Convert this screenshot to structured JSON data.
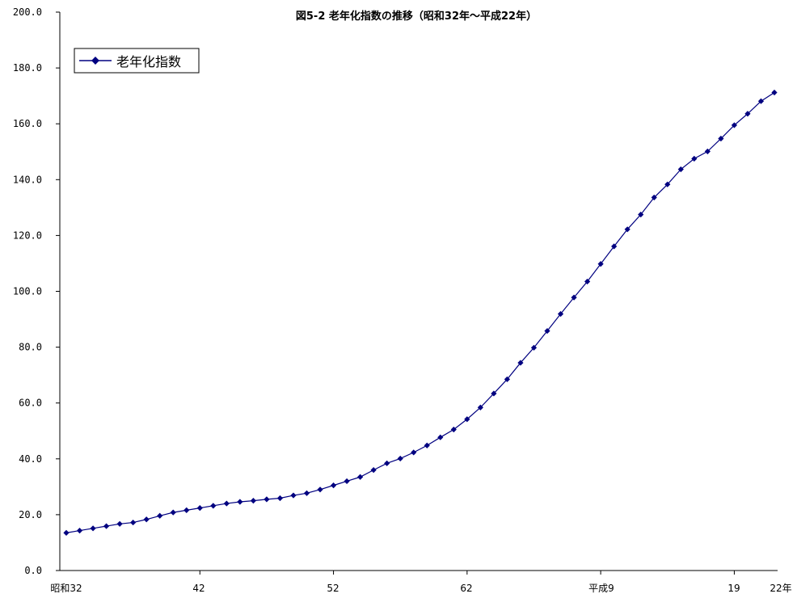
{
  "chart_data": {
    "type": "line",
    "title": "図5-2 老年化指数の推移（昭和32年～平成22年）",
    "xlabel": "",
    "ylabel": "",
    "ylim": [
      0,
      200
    ],
    "y_ticks": [
      "0.0",
      "20.0",
      "40.0",
      "60.0",
      "80.0",
      "100.0",
      "120.0",
      "140.0",
      "160.0",
      "180.0",
      "200.0"
    ],
    "x_tick_labels": [
      "昭和32",
      "42",
      "52",
      "62",
      "平成9",
      "19",
      "22年"
    ],
    "x_tick_indices": [
      0,
      10,
      20,
      30,
      40,
      50,
      53
    ],
    "grid": false,
    "legend": "top-left",
    "color": "#000080",
    "series": [
      {
        "name": "老年化指数",
        "values": [
          13.5,
          14.3,
          15.1,
          15.9,
          16.7,
          17.2,
          18.3,
          19.6,
          20.8,
          21.6,
          22.4,
          23.2,
          24.0,
          24.6,
          25.0,
          25.5,
          25.9,
          26.9,
          27.7,
          29.0,
          30.5,
          32.0,
          33.5,
          36.0,
          38.4,
          40.1,
          42.3,
          44.8,
          47.7,
          50.5,
          54.2,
          58.4,
          63.4,
          68.5,
          74.4,
          79.8,
          85.8,
          91.9,
          97.8,
          103.5,
          109.8,
          116.1,
          122.2,
          127.5,
          133.6,
          138.3,
          143.7,
          147.5,
          150.1,
          154.7,
          159.5,
          163.6,
          168.1,
          171.2
        ]
      }
    ]
  }
}
